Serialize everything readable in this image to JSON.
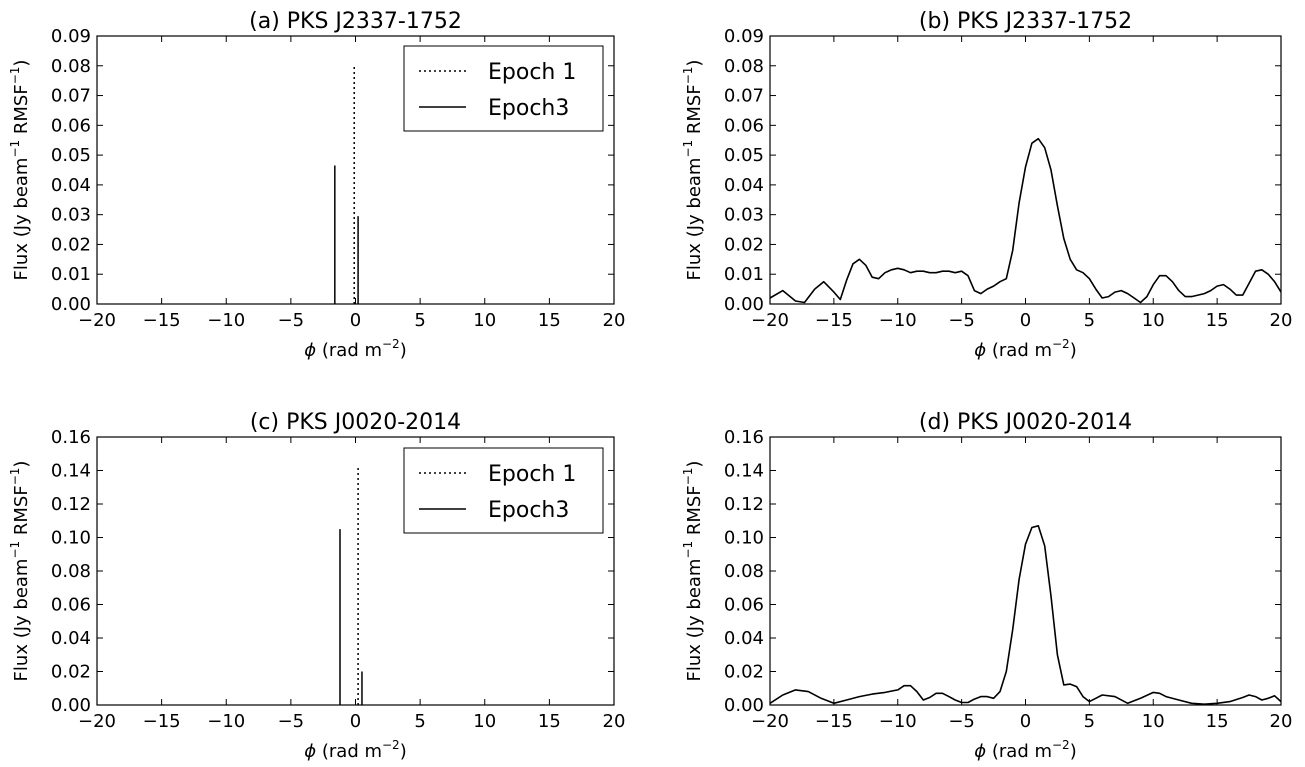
{
  "chart_data": [
    {
      "type": "line",
      "panel": "a",
      "title": "(a) PKS J2337-1752",
      "xlabel_symbol": "ϕ",
      "xlabel_unit": "(rad m",
      "xlabel_exp": "−2",
      "xlabel_close": ")",
      "ylabel_pre": "Flux (Jy beam",
      "ylabel_mid": " RMSF",
      "ylabel_exp": "−1",
      "ylabel_close": ")",
      "xlim": [
        -20,
        20
      ],
      "ylim": [
        0,
        0.09
      ],
      "xticks": [
        "−20",
        "−15",
        "−10",
        "−5",
        "0",
        "5",
        "10",
        "15",
        "20"
      ],
      "yticks": [
        "0.00",
        "0.01",
        "0.02",
        "0.03",
        "0.04",
        "0.05",
        "0.06",
        "0.07",
        "0.08",
        "0.09"
      ],
      "legend": "top-right",
      "legend_entries": [
        "Epoch 1",
        "Epoch3"
      ],
      "series": [
        {
          "name": "Epoch 1",
          "style": "dotted",
          "kind": "stem",
          "x": [
            -0.1
          ],
          "y": [
            0.08
          ]
        },
        {
          "name": "Epoch3",
          "style": "solid",
          "kind": "stem",
          "x": [
            -1.6,
            0.2
          ],
          "y": [
            0.0465,
            0.0295
          ]
        }
      ]
    },
    {
      "type": "line",
      "panel": "b",
      "title": "(b) PKS J2337-1752",
      "xlabel_symbol": "ϕ",
      "xlabel_unit": "(rad m",
      "xlabel_exp": "−2",
      "xlabel_close": ")",
      "ylabel_pre": "Flux (Jy beam",
      "ylabel_mid": " RMSF",
      "ylabel_exp": "−1",
      "ylabel_close": ")",
      "xlim": [
        -20,
        20
      ],
      "ylim": [
        0,
        0.09
      ],
      "xticks": [
        "−20",
        "−15",
        "−10",
        "−5",
        "0",
        "5",
        "10",
        "15",
        "20"
      ],
      "yticks": [
        "0.00",
        "0.01",
        "0.02",
        "0.03",
        "0.04",
        "0.05",
        "0.06",
        "0.07",
        "0.08",
        "0.09"
      ],
      "series": [
        {
          "style": "solid",
          "kind": "curve",
          "x": [
            -20,
            -19,
            -18,
            -17.3,
            -16.5,
            -15.8,
            -15,
            -14.5,
            -14,
            -13.5,
            -13,
            -12.5,
            -12,
            -11.5,
            -11,
            -10.5,
            -10,
            -9.5,
            -9,
            -8.5,
            -8,
            -7.5,
            -7,
            -6.5,
            -6,
            -5.5,
            -5,
            -4.5,
            -4,
            -3.5,
            -3,
            -2.5,
            -2,
            -1.5,
            -1,
            -0.5,
            0,
            0.5,
            1,
            1.5,
            2,
            2.5,
            3,
            3.5,
            4,
            4.5,
            5,
            5.5,
            6,
            6.5,
            7,
            7.5,
            8,
            8.5,
            9,
            9.5,
            10,
            10.5,
            11,
            11.5,
            12,
            12.5,
            13,
            13.5,
            14,
            14.5,
            15,
            15.5,
            16,
            16.5,
            17,
            17.5,
            18,
            18.5,
            19,
            19.5,
            20
          ],
          "y": [
            0.002,
            0.0045,
            0.001,
            0.0005,
            0.005,
            0.0075,
            0.004,
            0.0015,
            0.008,
            0.0135,
            0.015,
            0.013,
            0.009,
            0.0085,
            0.0105,
            0.0115,
            0.012,
            0.0115,
            0.0105,
            0.011,
            0.011,
            0.0105,
            0.0105,
            0.011,
            0.011,
            0.0105,
            0.011,
            0.0095,
            0.0045,
            0.0035,
            0.005,
            0.006,
            0.0075,
            0.0085,
            0.018,
            0.034,
            0.046,
            0.054,
            0.0555,
            0.0525,
            0.045,
            0.033,
            0.022,
            0.015,
            0.0115,
            0.0105,
            0.0085,
            0.005,
            0.002,
            0.0025,
            0.004,
            0.0045,
            0.0035,
            0.002,
            0.0005,
            0.0025,
            0.0065,
            0.0095,
            0.0095,
            0.0075,
            0.0045,
            0.0025,
            0.0025,
            0.003,
            0.0035,
            0.0045,
            0.006,
            0.0065,
            0.005,
            0.003,
            0.003,
            0.007,
            0.011,
            0.0115,
            0.01,
            0.0075,
            0.004
          ]
        }
      ]
    },
    {
      "type": "line",
      "panel": "c",
      "title": "(c) PKS J0020-2014",
      "xlabel_symbol": "ϕ",
      "xlabel_unit": "(rad m",
      "xlabel_exp": "−2",
      "xlabel_close": ")",
      "ylabel_pre": "Flux (Jy beam",
      "ylabel_mid": " RMSF",
      "ylabel_exp": "−1",
      "ylabel_close": ")",
      "xlim": [
        -20,
        20
      ],
      "ylim": [
        0,
        0.16
      ],
      "xticks": [
        "−20",
        "−15",
        "−10",
        "−5",
        "0",
        "5",
        "10",
        "15",
        "20"
      ],
      "yticks": [
        "0.00",
        "0.02",
        "0.04",
        "0.06",
        "0.08",
        "0.10",
        "0.12",
        "0.14",
        "0.16"
      ],
      "legend": "top-right",
      "legend_entries": [
        "Epoch 1",
        "Epoch3"
      ],
      "series": [
        {
          "name": "Epoch 1",
          "style": "dotted",
          "kind": "stem",
          "x": [
            0.2
          ],
          "y": [
            0.143
          ]
        },
        {
          "name": "Epoch3",
          "style": "solid",
          "kind": "stem",
          "x": [
            -1.2,
            0.5
          ],
          "y": [
            0.105,
            0.02
          ]
        }
      ]
    },
    {
      "type": "line",
      "panel": "d",
      "title": "(d) PKS J0020-2014",
      "xlabel_symbol": "ϕ",
      "xlabel_unit": "(rad m",
      "xlabel_exp": "−2",
      "xlabel_close": ")",
      "ylabel_pre": "Flux (Jy beam",
      "ylabel_mid": " RMSF",
      "ylabel_exp": "−1",
      "ylabel_close": ")",
      "xlim": [
        -20,
        20
      ],
      "ylim": [
        0,
        0.16
      ],
      "xticks": [
        "−20",
        "−15",
        "−10",
        "−5",
        "0",
        "5",
        "10",
        "15",
        "20"
      ],
      "yticks": [
        "0.00",
        "0.02",
        "0.04",
        "0.06",
        "0.08",
        "0.10",
        "0.12",
        "0.14",
        "0.16"
      ],
      "series": [
        {
          "style": "solid",
          "kind": "curve",
          "x": [
            -20,
            -19,
            -18,
            -17,
            -16,
            -15,
            -14,
            -13,
            -12,
            -11,
            -10,
            -9.5,
            -9,
            -8.5,
            -8,
            -7.5,
            -7,
            -6.5,
            -6,
            -5.5,
            -5,
            -4.5,
            -4,
            -3.5,
            -3,
            -2.5,
            -2,
            -1.5,
            -1,
            -0.5,
            0,
            0.5,
            1,
            1.5,
            2,
            2.5,
            3,
            3.5,
            4,
            4.5,
            5,
            5.5,
            6,
            7,
            8,
            9,
            10,
            10.5,
            11,
            12,
            13,
            14,
            15,
            16,
            17,
            17.5,
            18,
            18.5,
            19,
            19.5,
            20
          ],
          "y": [
            0.001,
            0.006,
            0.009,
            0.008,
            0.004,
            0.001,
            0.003,
            0.005,
            0.0065,
            0.0075,
            0.009,
            0.0115,
            0.0115,
            0.008,
            0.003,
            0.0045,
            0.007,
            0.007,
            0.005,
            0.003,
            0.0015,
            0.0015,
            0.0035,
            0.005,
            0.005,
            0.004,
            0.008,
            0.02,
            0.045,
            0.075,
            0.096,
            0.106,
            0.107,
            0.095,
            0.065,
            0.03,
            0.012,
            0.0125,
            0.011,
            0.005,
            0.002,
            0.004,
            0.006,
            0.005,
            0.001,
            0.004,
            0.0075,
            0.007,
            0.005,
            0.003,
            0.001,
            0.0005,
            0.001,
            0.002,
            0.0045,
            0.006,
            0.005,
            0.003,
            0.004,
            0.0055,
            0.002
          ]
        }
      ]
    }
  ]
}
